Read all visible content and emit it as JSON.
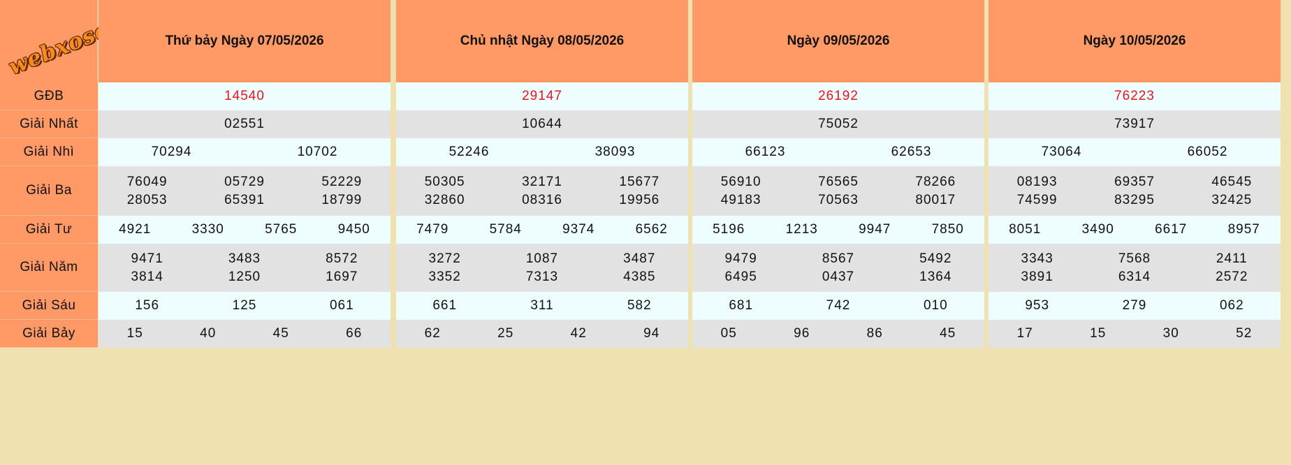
{
  "logo": "webxoso.net",
  "prize_labels": [
    "GĐB",
    "Giải Nhất",
    "Giải Nhì",
    "Giải Ba",
    "Giải Tư",
    "Giải Năm",
    "Giải Sáu",
    "Giải Bảy"
  ],
  "days": [
    {
      "title": "Thứ bảy Ngày 07/05/2026",
      "prizes": [
        [
          "14540"
        ],
        [
          "02551"
        ],
        [
          "70294",
          "10702"
        ],
        [
          "76049",
          "05729",
          "52229",
          "28053",
          "65391",
          "18799"
        ],
        [
          "4921",
          "3330",
          "5765",
          "9450"
        ],
        [
          "9471",
          "3483",
          "8572",
          "3814",
          "1250",
          "1697"
        ],
        [
          "156",
          "125",
          "061"
        ],
        [
          "15",
          "40",
          "45",
          "66"
        ]
      ]
    },
    {
      "title": "Chủ nhật Ngày 08/05/2026",
      "prizes": [
        [
          "29147"
        ],
        [
          "10644"
        ],
        [
          "52246",
          "38093"
        ],
        [
          "50305",
          "32171",
          "15677",
          "32860",
          "08316",
          "19956"
        ],
        [
          "7479",
          "5784",
          "9374",
          "6562"
        ],
        [
          "3272",
          "1087",
          "3487",
          "3352",
          "7313",
          "4385"
        ],
        [
          "661",
          "311",
          "582"
        ],
        [
          "62",
          "25",
          "42",
          "94"
        ]
      ]
    },
    {
      "title": "Ngày 09/05/2026",
      "prizes": [
        [
          "26192"
        ],
        [
          "75052"
        ],
        [
          "66123",
          "62653"
        ],
        [
          "56910",
          "76565",
          "78266",
          "49183",
          "70563",
          "80017"
        ],
        [
          "5196",
          "1213",
          "9947",
          "7850"
        ],
        [
          "9479",
          "8567",
          "5492",
          "6495",
          "0437",
          "1364"
        ],
        [
          "681",
          "742",
          "010"
        ],
        [
          "05",
          "96",
          "86",
          "45"
        ]
      ]
    },
    {
      "title": "Ngày 10/05/2026",
      "prizes": [
        [
          "76223"
        ],
        [
          "73917"
        ],
        [
          "73064",
          "66052"
        ],
        [
          "08193",
          "69357",
          "46545",
          "74599",
          "83295",
          "32425"
        ],
        [
          "8051",
          "3490",
          "6617",
          "8957"
        ],
        [
          "3343",
          "7568",
          "2411",
          "3891",
          "6314",
          "2572"
        ],
        [
          "953",
          "279",
          "062"
        ],
        [
          "17",
          "15",
          "30",
          "52"
        ]
      ]
    }
  ]
}
